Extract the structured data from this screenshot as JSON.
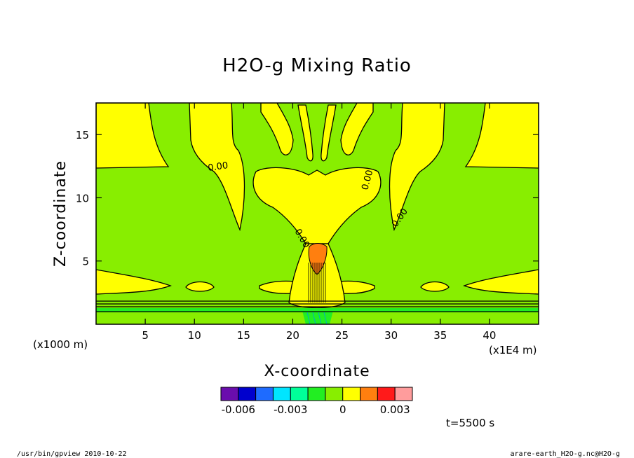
{
  "chart_data": {
    "type": "heatmap",
    "title": "H2O-g Mixing Ratio",
    "xlabel": "X-coordinate",
    "ylabel": "Z-coordinate",
    "x_unit_left": "(x1000 m)",
    "x_unit_right": "(x1E4 m)",
    "xlim": [
      0,
      45
    ],
    "ylim": [
      0,
      17.5
    ],
    "x_ticks": [
      5,
      10,
      15,
      20,
      25,
      30,
      35,
      40
    ],
    "x_tick_labels": [
      "5",
      "10",
      "15",
      "20",
      "25",
      "30",
      "35",
      "40"
    ],
    "y_ticks": [
      5,
      10,
      15
    ],
    "y_tick_labels": [
      "5",
      "10",
      "15"
    ],
    "contour_labels": [
      "0.00",
      "0.00",
      "0.00",
      "0.00"
    ],
    "time_label": "t=5500 s",
    "colorbar": {
      "colors": [
        "#6a0dad",
        "#0000cd",
        "#1e6bff",
        "#00e5ff",
        "#00ff99",
        "#22ee22",
        "#88ee00",
        "#ffff00",
        "#ff7f0f",
        "#ff1a1a",
        "#ff9c9c"
      ],
      "tick_values": [
        -0.006,
        -0.003,
        0,
        0.003
      ],
      "tick_labels": [
        "-0.006",
        "-0.003",
        "0",
        "0.003"
      ]
    },
    "regions": {
      "background_color": "#88ee00",
      "positive_color": "#ffff00",
      "strong_color": "#ff7f0f",
      "negative_color": "#22ee22"
    }
  },
  "footer": {
    "left": "/usr/bin/gpview  2010-10-22",
    "right": "arare-earth_H2O-g.nc@H2O-g"
  }
}
